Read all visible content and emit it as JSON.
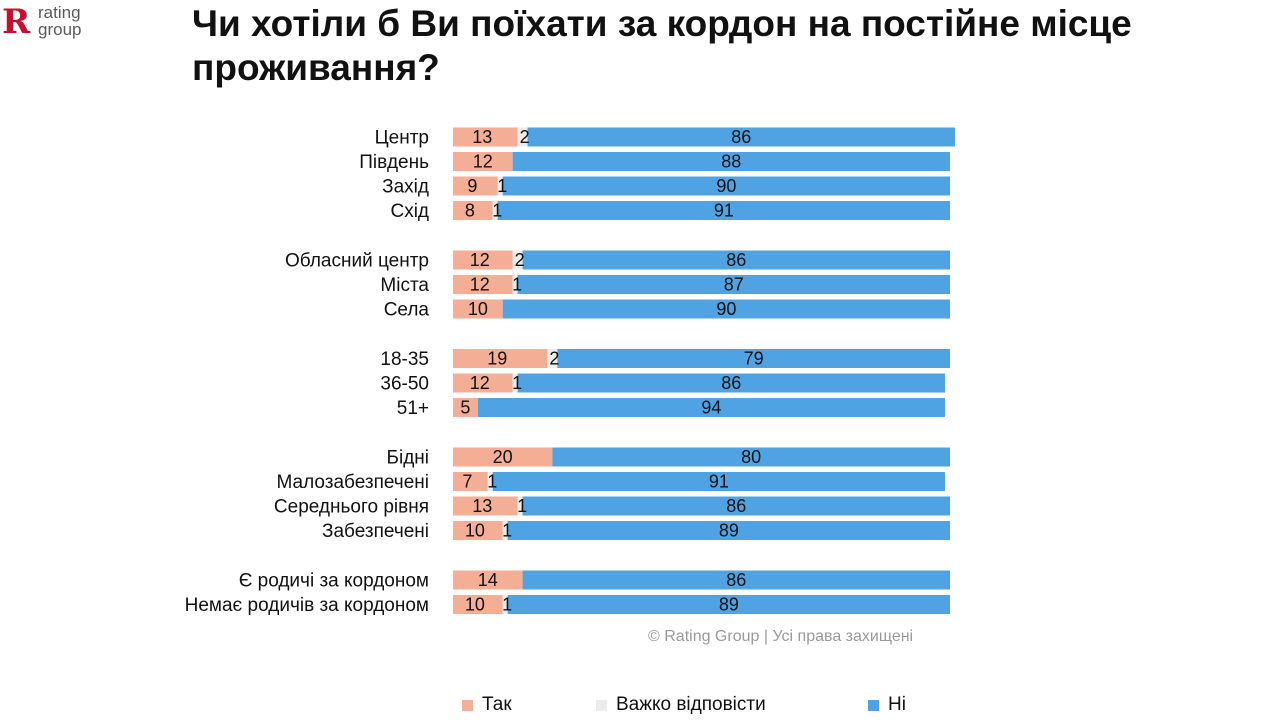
{
  "logo": {
    "mark": "R",
    "line1": "rating",
    "line2": "group",
    "brand_color": "#c8102e"
  },
  "title": "Чи хотіли б Ви поїхати за кордон на постійне місце проживання?",
  "copyright": "© Rating Group | Усі права захищені",
  "colors": {
    "yes": "#f4ae95",
    "hard": "#ececec",
    "no": "#4fa3e2"
  },
  "chart_data": {
    "type": "bar",
    "orientation": "horizontal",
    "stacked": true,
    "unit": "%",
    "xlim": [
      0,
      100
    ],
    "grid": false,
    "legend_position": "bottom",
    "series": [
      {
        "name": "Так",
        "color": "#f4ae95",
        "values": [
          13,
          12,
          9,
          8,
          12,
          12,
          10,
          19,
          12,
          5,
          20,
          7,
          13,
          10,
          14,
          10
        ]
      },
      {
        "name": "Важко відповісти",
        "color": "#ececec",
        "values": [
          2,
          0,
          1,
          1,
          2,
          1,
          0,
          2,
          1,
          0,
          0,
          1,
          1,
          1,
          0,
          1
        ]
      },
      {
        "name": "Ні",
        "color": "#4fa3e2",
        "values": [
          86,
          88,
          90,
          91,
          86,
          87,
          90,
          79,
          86,
          94,
          80,
          91,
          86,
          89,
          86,
          89
        ]
      }
    ],
    "groups": [
      {
        "categories": [
          "Центр",
          "Південь",
          "Захід",
          "Схід"
        ]
      },
      {
        "categories": [
          "Обласний центр",
          "Міста",
          "Села"
        ]
      },
      {
        "categories": [
          "18-35",
          "36-50",
          "51+"
        ]
      },
      {
        "categories": [
          "Бідні",
          "Малозабезпечені",
          "Середнього рівня",
          "Забезпечені"
        ]
      },
      {
        "categories": [
          "Є родичі за кордоном",
          "Немає родичів за кордоном"
        ]
      }
    ]
  }
}
